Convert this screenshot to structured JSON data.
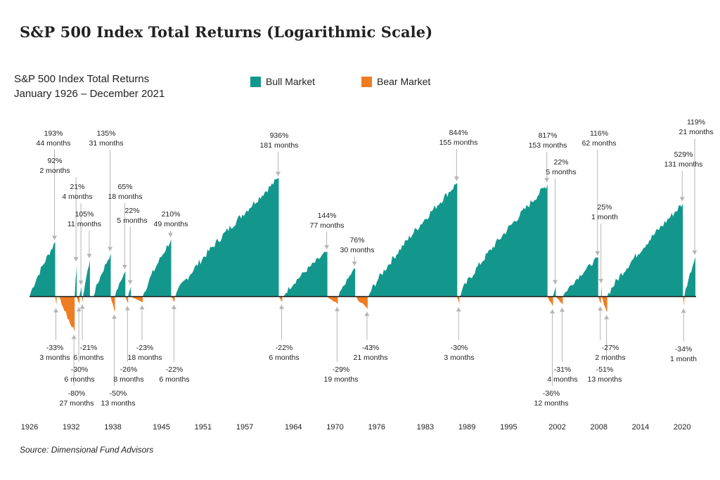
{
  "title": "S&P 500 Index Total Returns (Logarithmic Scale)",
  "subtitle_line1": "S&P 500 Index Total Returns",
  "subtitle_line2": "January 1926 – December 2021",
  "legend": [
    {
      "label": "Bull Market",
      "color": "#13978d"
    },
    {
      "label": "Bear Market",
      "color": "#ee7d22"
    }
  ],
  "source": "Source: Dimensional Fund Advisors",
  "chart_data": {
    "type": "area",
    "x_tick_labels": [
      "1926",
      "1932",
      "1938",
      "1945",
      "1951",
      "1957",
      "1964",
      "1970",
      "1976",
      "1983",
      "1989",
      "1995",
      "2002",
      "2008",
      "2014",
      "2020"
    ],
    "x_range": [
      1926,
      2021
    ],
    "log_scale": true,
    "grid": false,
    "legend_placement": "top",
    "colors": {
      "bull": "#13978d",
      "bear": "#ee7d22",
      "arrow": "#b5b5b5"
    },
    "bull_markets": [
      {
        "start": 1926.0,
        "end": 1929.7,
        "pct": "193%",
        "months": "44 months",
        "value": 193
      },
      {
        "start": 1932.5,
        "end": 1932.8,
        "pct": "92%",
        "months": "2 months",
        "value": 92
      },
      {
        "start": 1933.2,
        "end": 1933.5,
        "pct": "21%",
        "months": "4 months",
        "value": 21
      },
      {
        "start": 1933.7,
        "end": 1934.7,
        "pct": "105%",
        "months": "11 months",
        "value": 105
      },
      {
        "start": 1935.2,
        "end": 1937.7,
        "pct": "135%",
        "months": "31 months",
        "value": 135
      },
      {
        "start": 1938.3,
        "end": 1939.8,
        "pct": "65%",
        "months": "18 months",
        "value": 65
      },
      {
        "start": 1940.2,
        "end": 1940.6,
        "pct": "22%",
        "months": "5 months",
        "value": 22
      },
      {
        "start": 1942.3,
        "end": 1946.4,
        "pct": "210%",
        "months": "49 months",
        "value": 210
      },
      {
        "start": 1947.0,
        "end": 1961.9,
        "pct": "936%",
        "months": "181 months",
        "value": 936
      },
      {
        "start": 1962.5,
        "end": 1968.9,
        "pct": "144%",
        "months": "77 months",
        "value": 144
      },
      {
        "start": 1970.5,
        "end": 1972.9,
        "pct": "76%",
        "months": "30 months",
        "value": 76
      },
      {
        "start": 1974.8,
        "end": 1987.6,
        "pct": "844%",
        "months": "155 months",
        "value": 844
      },
      {
        "start": 1987.9,
        "end": 2000.6,
        "pct": "817%",
        "months": "153 months",
        "value": 817
      },
      {
        "start": 2001.4,
        "end": 2001.8,
        "pct": "22%",
        "months": "5 months",
        "value": 22
      },
      {
        "start": 2002.8,
        "end": 2007.9,
        "pct": "116%",
        "months": "62 months",
        "value": 116
      },
      {
        "start": 2008.3,
        "end": 2008.4,
        "pct": "25%",
        "months": "1 month",
        "value": 25
      },
      {
        "start": 2009.2,
        "end": 2020.1,
        "pct": "529%",
        "months": "131 months",
        "value": 529
      },
      {
        "start": 2020.3,
        "end": 2021.9,
        "pct": "119%",
        "months": "21 months",
        "value": 119
      }
    ],
    "bear_markets": [
      {
        "start": 1929.7,
        "end": 1929.9,
        "pct": "-33%",
        "months": "3 months",
        "value": -33
      },
      {
        "start": 1930.2,
        "end": 1932.5,
        "pct": "-80%",
        "months": "27 months",
        "value": -80
      },
      {
        "start": 1932.8,
        "end": 1933.2,
        "pct": "-30%",
        "months": "6 months",
        "value": -30
      },
      {
        "start": 1933.5,
        "end": 1933.7,
        "pct": "-21%",
        "months": "6 months",
        "value": -21
      },
      {
        "start": 1937.7,
        "end": 1938.3,
        "pct": "-50%",
        "months": "13 months",
        "value": -50
      },
      {
        "start": 1939.8,
        "end": 1940.2,
        "pct": "-26%",
        "months": "8 months",
        "value": -26
      },
      {
        "start": 1940.6,
        "end": 1942.3,
        "pct": "-23%",
        "months": "18 months",
        "value": -23
      },
      {
        "start": 1946.4,
        "end": 1946.9,
        "pct": "-22%",
        "months": "6 months",
        "value": -22
      },
      {
        "start": 1961.9,
        "end": 1962.4,
        "pct": "-22%",
        "months": "6 months",
        "value": -22
      },
      {
        "start": 1968.9,
        "end": 1970.4,
        "pct": "-29%",
        "months": "19 months",
        "value": -29
      },
      {
        "start": 1972.9,
        "end": 1974.7,
        "pct": "-43%",
        "months": "21 months",
        "value": -43
      },
      {
        "start": 1987.6,
        "end": 1987.9,
        "pct": "-30%",
        "months": "3 months",
        "value": -30
      },
      {
        "start": 2000.6,
        "end": 2001.4,
        "pct": "-36%",
        "months": "12 months",
        "value": -36
      },
      {
        "start": 2001.8,
        "end": 2002.8,
        "pct": "-31%",
        "months": "4 months",
        "value": -31
      },
      {
        "start": 2007.9,
        "end": 2008.3,
        "pct": "-27%",
        "months": "2 months",
        "value": -27
      },
      {
        "start": 2008.4,
        "end": 2009.2,
        "pct": "-51%",
        "months": "13 months",
        "value": -51
      },
      {
        "start": 2020.1,
        "end": 2020.3,
        "pct": "-34%",
        "months": "1 month",
        "value": -34
      }
    ]
  }
}
